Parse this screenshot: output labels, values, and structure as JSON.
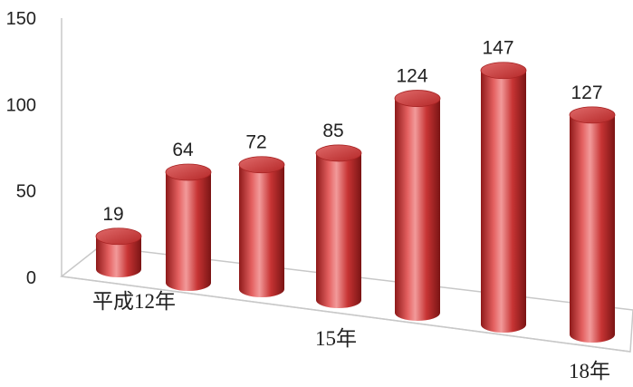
{
  "chart_data": {
    "type": "bar",
    "categories": [
      "平成12年",
      "",
      "",
      "15年",
      "",
      "",
      "18年"
    ],
    "values": [
      19,
      64,
      72,
      85,
      124,
      147,
      127
    ],
    "ylim": [
      0,
      150
    ],
    "yticks": [
      0,
      50,
      100,
      150
    ],
    "ytick_labels": [
      "0",
      "50",
      "100",
      "150"
    ],
    "title": "",
    "xlabel": "",
    "ylabel": "",
    "legend": "none",
    "grid": false,
    "bar_color": "#c62f2f",
    "bar_highlight": "#f08a8a",
    "bar_shadow": "#7a1414",
    "style": "3d-cylinder"
  }
}
